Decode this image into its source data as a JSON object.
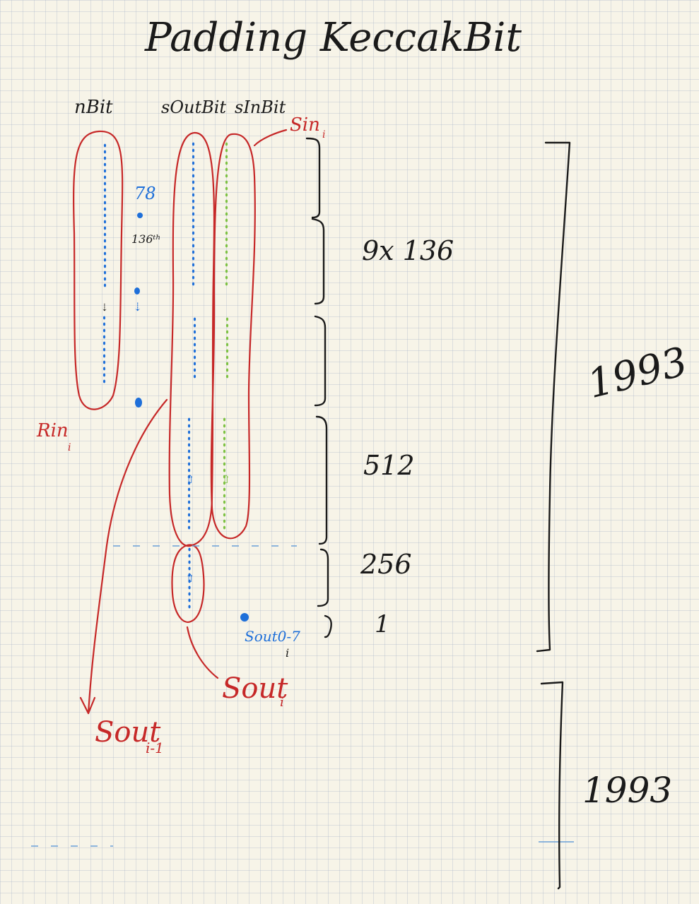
{
  "title": "Padding KeccakBit",
  "columns": {
    "nbit": "nBit",
    "sout": "sOutBit",
    "sin": "sInBit"
  },
  "labels": {
    "sin_i": "Sin",
    "sin_i_sub": "i",
    "n78": "78",
    "n136": "136ᵗʰ",
    "rin": "Rin",
    "rin_sub": "i",
    "sout07": "Sout0-7",
    "sout07_sub": "i",
    "sout_i": "Sout",
    "sout_i_sub": "i",
    "sout_im1": "Sout",
    "sout_im1_sub": "i-1"
  },
  "counts": {
    "c9x136": "9x 136",
    "c512": "512",
    "c256": "256",
    "c1": "1",
    "c1993a": "1993",
    "c1993b": "1993"
  },
  "colors": {
    "blue": "#1e6fd9",
    "green": "#7cc142",
    "red": "#c62828",
    "ink": "#1a1a1a"
  }
}
